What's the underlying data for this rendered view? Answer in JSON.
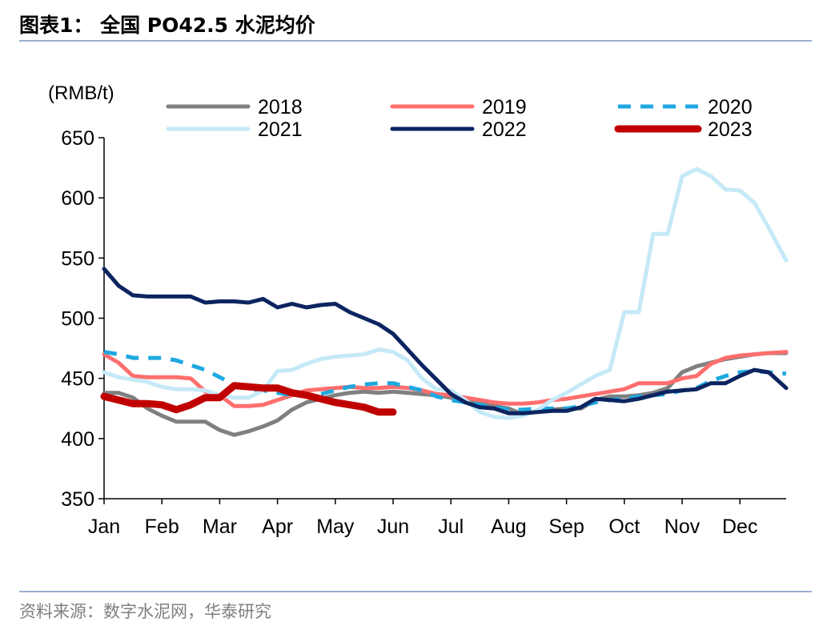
{
  "title": "图表1：  全国 PO42.5 水泥均价",
  "source": "资料来源：数字水泥网，华泰研究",
  "chart_data": {
    "type": "line",
    "unit_label": "(RMB/t)",
    "ylim": [
      350,
      650
    ],
    "yticks": [
      350,
      400,
      450,
      500,
      550,
      600,
      650
    ],
    "x_label_positions": [
      0,
      1,
      2,
      3,
      4,
      5,
      6,
      7,
      8,
      9,
      10,
      11
    ],
    "x_labels": [
      "Jan",
      "Feb",
      "Mar",
      "Apr",
      "May",
      "Jun",
      "Jul",
      "Aug",
      "Sep",
      "Oct",
      "Nov",
      "Dec"
    ],
    "xlim": [
      0,
      11.8
    ],
    "legend_position": "top",
    "series": [
      {
        "name": "2018",
        "color": "#808080",
        "dash": "solid",
        "width": 5,
        "x": [
          0,
          0.25,
          0.5,
          0.75,
          1,
          1.25,
          1.5,
          1.75,
          2,
          2.25,
          2.5,
          2.75,
          3,
          3.25,
          3.5,
          3.75,
          4,
          4.25,
          4.5,
          4.75,
          5,
          5.25,
          5.5,
          5.75,
          6,
          6.25,
          6.5,
          6.75,
          7,
          7.25,
          7.5,
          7.75,
          8,
          8.25,
          8.5,
          8.75,
          9,
          9.25,
          9.5,
          9.75,
          10,
          10.25,
          10.5,
          10.75,
          11,
          11.25,
          11.5,
          11.8
        ],
        "y": [
          438,
          438,
          434,
          425,
          419,
          414,
          414,
          414,
          407,
          403,
          406,
          410,
          415,
          424,
          430,
          433,
          436,
          438,
          439,
          438,
          439,
          438,
          437,
          436,
          434,
          432,
          430,
          427,
          425,
          420,
          423,
          424,
          425,
          425,
          432,
          435,
          435,
          436,
          438,
          442,
          455,
          460,
          463,
          466,
          468,
          470,
          471,
          471
        ]
      },
      {
        "name": "2019",
        "color": "#ff6e6e",
        "dash": "solid",
        "width": 5,
        "x": [
          0,
          0.25,
          0.5,
          0.75,
          1,
          1.25,
          1.5,
          1.75,
          2,
          2.25,
          2.5,
          2.75,
          3,
          3.25,
          3.5,
          3.75,
          4,
          4.25,
          4.5,
          4.75,
          5,
          5.25,
          5.5,
          5.75,
          6,
          6.25,
          6.5,
          6.75,
          7,
          7.25,
          7.5,
          7.75,
          8,
          8.25,
          8.5,
          8.75,
          9,
          9.25,
          9.5,
          9.75,
          10,
          10.25,
          10.5,
          10.75,
          11,
          11.25,
          11.5,
          11.8
        ],
        "y": [
          470,
          463,
          452,
          451,
          451,
          451,
          450,
          439,
          436,
          427,
          427,
          428,
          432,
          436,
          440,
          441,
          442,
          443,
          442,
          442,
          443,
          442,
          440,
          437,
          436,
          434,
          432,
          430,
          429,
          429,
          430,
          432,
          433,
          435,
          437,
          439,
          441,
          446,
          446,
          446,
          450,
          452,
          462,
          467,
          469,
          470,
          471,
          472
        ]
      },
      {
        "name": "2020",
        "color": "#1fa8e0",
        "dash": "dashed",
        "width": 5,
        "x": [
          0,
          0.25,
          0.5,
          0.75,
          1,
          1.25,
          1.5,
          1.75,
          2,
          2.25,
          2.5,
          2.75,
          3,
          3.25,
          3.5,
          3.75,
          4,
          4.25,
          4.5,
          4.75,
          5,
          5.25,
          5.5,
          5.75,
          6,
          6.25,
          6.5,
          6.75,
          7,
          7.25,
          7.5,
          7.75,
          8,
          8.25,
          8.5,
          8.75,
          9,
          9.25,
          9.5,
          9.75,
          10,
          10.25,
          10.5,
          10.75,
          11,
          11.25,
          11.5,
          11.8
        ],
        "y": [
          472,
          470,
          467,
          467,
          467,
          465,
          461,
          457,
          451,
          445,
          441,
          440,
          438,
          436,
          436,
          437,
          440,
          443,
          445,
          446,
          446,
          443,
          440,
          435,
          432,
          430,
          428,
          426,
          424,
          424,
          425,
          425,
          425,
          427,
          430,
          432,
          433,
          435,
          436,
          437,
          440,
          442,
          448,
          452,
          455,
          456,
          455,
          454
        ]
      },
      {
        "name": "2021",
        "color": "#c5e9f7",
        "dash": "solid",
        "width": 5,
        "x": [
          0,
          0.25,
          0.5,
          0.75,
          1,
          1.25,
          1.5,
          1.75,
          2,
          2.25,
          2.5,
          2.75,
          3,
          3.25,
          3.5,
          3.75,
          4,
          4.25,
          4.5,
          4.75,
          5,
          5.25,
          5.5,
          5.75,
          6,
          6.25,
          6.5,
          6.75,
          7,
          7.25,
          7.5,
          7.75,
          8,
          8.25,
          8.5,
          8.75,
          9,
          9.25,
          9.5,
          9.75,
          10,
          10.25,
          10.5,
          10.75,
          11,
          11.25,
          11.5,
          11.8
        ],
        "y": [
          455,
          451,
          449,
          447,
          443,
          441,
          441,
          440,
          436,
          434,
          434,
          440,
          456,
          457,
          462,
          466,
          468,
          469,
          470,
          474,
          472,
          465,
          450,
          441,
          440,
          432,
          422,
          418,
          417,
          419,
          424,
          432,
          438,
          445,
          452,
          457,
          505,
          505,
          570,
          570,
          618,
          624,
          618,
          607,
          606,
          596,
          575,
          548
        ]
      },
      {
        "name": "2022",
        "color": "#0c2460",
        "dash": "solid",
        "width": 5,
        "x": [
          0,
          0.25,
          0.5,
          0.75,
          1,
          1.25,
          1.5,
          1.75,
          2,
          2.25,
          2.5,
          2.75,
          3,
          3.25,
          3.5,
          3.75,
          4,
          4.25,
          4.5,
          4.75,
          5,
          5.25,
          5.5,
          5.75,
          6,
          6.25,
          6.5,
          6.75,
          7,
          7.25,
          7.5,
          7.75,
          8,
          8.25,
          8.5,
          8.75,
          9,
          9.25,
          9.5,
          9.75,
          10,
          10.25,
          10.5,
          10.75,
          11,
          11.25,
          11.5,
          11.8
        ],
        "y": [
          541,
          527,
          519,
          518,
          518,
          518,
          518,
          513,
          514,
          514,
          513,
          516,
          509,
          512,
          509,
          511,
          512,
          505,
          500,
          495,
          487,
          474,
          461,
          449,
          437,
          430,
          426,
          425,
          421,
          421,
          422,
          423,
          423,
          426,
          433,
          432,
          431,
          433,
          436,
          439,
          440,
          441,
          446,
          446,
          452,
          457,
          455,
          442
        ]
      },
      {
        "name": "2023",
        "color": "#c00000",
        "dash": "solid",
        "width": 9,
        "x": [
          0,
          0.25,
          0.5,
          0.75,
          1,
          1.25,
          1.5,
          1.75,
          2,
          2.25,
          2.5,
          2.75,
          3,
          3.25,
          3.5,
          3.75,
          4,
          4.25,
          4.5,
          4.75,
          5
        ],
        "y": [
          435,
          432,
          429,
          429,
          428,
          424,
          428,
          434,
          434,
          444,
          443,
          442,
          442,
          438,
          436,
          433,
          430,
          428,
          426,
          422,
          422
        ]
      }
    ]
  }
}
